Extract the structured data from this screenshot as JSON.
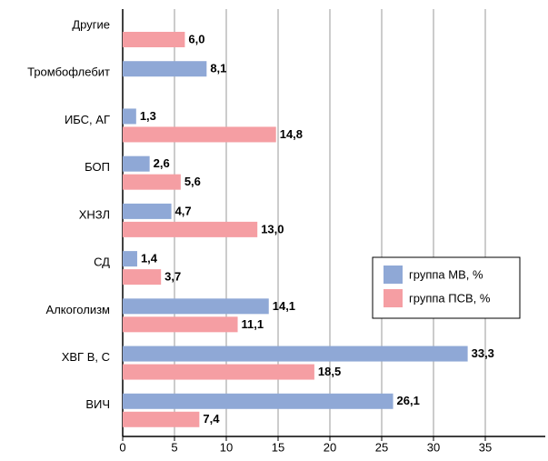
{
  "chart_data": {
    "type": "hbar",
    "categories": [
      "Другие",
      "Тромбофлебит",
      "ИБС, АГ",
      "БОП",
      "ХНЗЛ",
      "СД",
      "Алкоголизм",
      "ХВГ В, С",
      "ВИЧ"
    ],
    "series": [
      {
        "name": "группа МВ, %",
        "color": "#8fa8d6",
        "values": [
          null,
          8.1,
          1.3,
          2.6,
          4.7,
          1.4,
          14.1,
          33.3,
          26.1
        ],
        "value_labels": [
          null,
          "8,1",
          "1,3",
          "2,6",
          "4,7",
          "1,4",
          "14,1",
          "33,3",
          "26,1"
        ]
      },
      {
        "name": "группа ПСВ, %",
        "color": "#f59ea3",
        "values": [
          6.0,
          null,
          14.8,
          5.6,
          13.0,
          3.7,
          11.1,
          18.5,
          7.4
        ],
        "value_labels": [
          "6,0",
          null,
          "14,8",
          "5,6",
          "13,0",
          "3,7",
          "11,1",
          "18,5",
          "7,4"
        ]
      }
    ],
    "xlim": [
      0,
      40
    ],
    "xticks": [
      0,
      5,
      10,
      15,
      20,
      25,
      30,
      35
    ],
    "grid": true,
    "legend": "right"
  }
}
